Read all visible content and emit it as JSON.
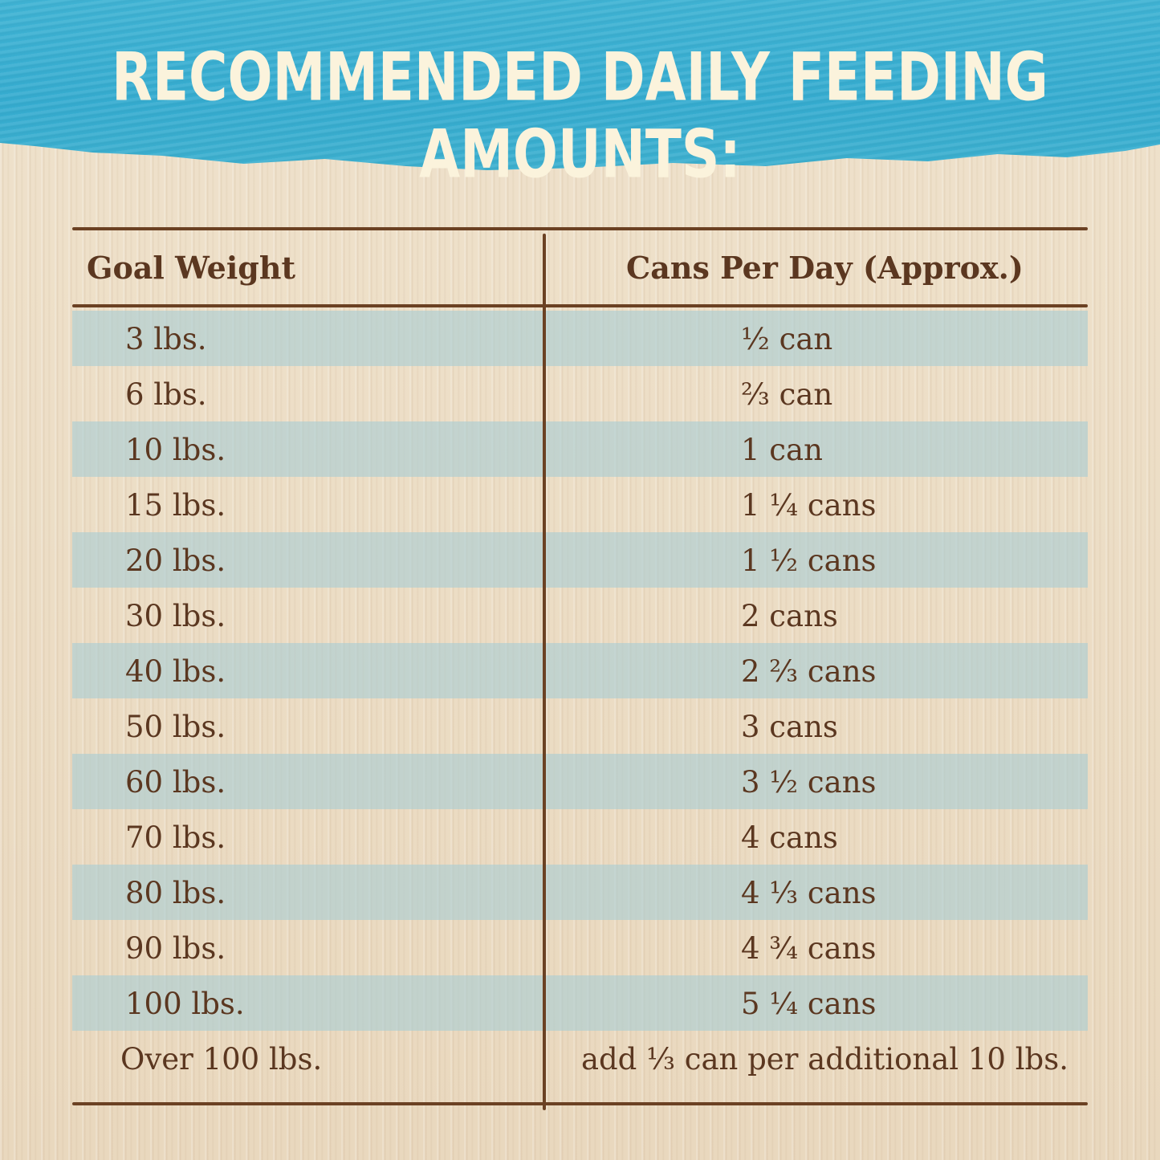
{
  "title": "RECOMMENDED DAILY FEEDING AMOUNTS:",
  "table": {
    "headers": {
      "goal_weight": "Goal Weight",
      "cans_per_day": "Cans Per Day (Approx.)"
    },
    "rows": [
      {
        "weight": "3 lbs.",
        "cans": "½ can"
      },
      {
        "weight": "6 lbs.",
        "cans": "⅔ can"
      },
      {
        "weight": "10 lbs.",
        "cans": "1 can"
      },
      {
        "weight": "15 lbs.",
        "cans": "1 ¼ cans"
      },
      {
        "weight": "20 lbs.",
        "cans": "1 ½ cans"
      },
      {
        "weight": "30 lbs.",
        "cans": "2 cans"
      },
      {
        "weight": "40 lbs.",
        "cans": "2 ⅔ cans"
      },
      {
        "weight": "50 lbs.",
        "cans": "3 cans"
      },
      {
        "weight": "60 lbs.",
        "cans": "3 ½ cans"
      },
      {
        "weight": "70 lbs.",
        "cans": "4 cans"
      },
      {
        "weight": "80 lbs.",
        "cans": "4 ⅓ cans"
      },
      {
        "weight": "90 lbs.",
        "cans": "4 ¾ cans"
      },
      {
        "weight": "100 lbs.",
        "cans": "5 ¼ cans"
      },
      {
        "weight": "Over 100 lbs.",
        "cans": "add ⅓ can per additional 10 lbs."
      }
    ]
  },
  "colors": {
    "banner": "#35acd0",
    "title_text": "#fbf3dc",
    "wood": "#ecdcc4",
    "band": "#aacdd4",
    "ink": "#5b3720",
    "rule": "#6b4123"
  }
}
